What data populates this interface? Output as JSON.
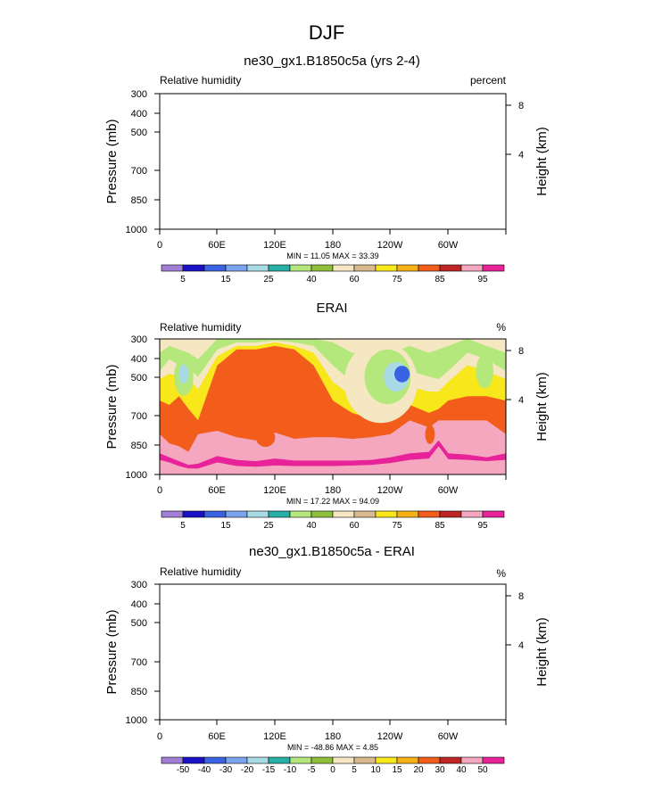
{
  "figure": {
    "title": "DJF"
  },
  "colorbar_levels_rh": [
    "5",
    "15",
    "25",
    "40",
    "60",
    "75",
    "85",
    "95"
  ],
  "colorbar_levels_diff": [
    "-50",
    "-40",
    "-30",
    "-20",
    "-15",
    "-10",
    "-5",
    "0",
    "5",
    "10",
    "15",
    "20",
    "30",
    "40",
    "50"
  ],
  "palette_rh": [
    "#a27fd6",
    "#1a10c6",
    "#3c62e4",
    "#7ba4ef",
    "#a9dbe6",
    "#26b0a6",
    "#b4e87c",
    "#8fbe3a",
    "#f4e7c2",
    "#d9b98d",
    "#f8e71a",
    "#f7b015",
    "#f25d1c",
    "#bd2526",
    "#f5a7c0",
    "#e8239a"
  ],
  "chart_data": [
    {
      "type": "heatmap",
      "title": "ne30_gx1.B1850c5a (yrs 2-4)",
      "left_label": "Relative humidity",
      "right_label": "percent",
      "xlabel": "",
      "ylabel": "Pressure (mb)",
      "ylabel_right": "Height (km)",
      "x_ticks": [
        "0",
        "60E",
        "120E",
        "180",
        "120W",
        "60W"
      ],
      "y_ticks": [
        "300",
        "400",
        "500",
        "700",
        "850",
        "1000"
      ],
      "y_ticks_right": [
        "8",
        "4"
      ],
      "min_max": "MIN = 11.05  MAX = 33.39",
      "fields_drawn": false
    },
    {
      "type": "heatmap",
      "title": "ERAI",
      "left_label": "Relative humidity",
      "right_label": "%",
      "xlabel": "",
      "ylabel": "Pressure (mb)",
      "ylabel_right": "Height (km)",
      "x_ticks": [
        "0",
        "60E",
        "120E",
        "180",
        "120W",
        "60W"
      ],
      "y_ticks": [
        "300",
        "400",
        "500",
        "700",
        "850",
        "1000"
      ],
      "y_ticks_right": [
        "8",
        "4"
      ],
      "min_max": "MIN = 17.22  MAX = 94.09",
      "xlim": [
        0,
        360
      ],
      "ylim": [
        1000,
        300
      ],
      "contour_levels": [
        5,
        15,
        25,
        40,
        60,
        75,
        85,
        95
      ],
      "columns_lon": [
        0,
        10,
        20,
        30,
        40,
        60,
        80,
        100,
        120,
        140,
        160,
        180,
        200,
        220,
        240,
        260,
        280,
        290,
        300,
        320,
        340,
        360
      ],
      "column_boundaries_pressure": [
        [
          340,
          400,
          430,
          520,
          700,
          780,
          830,
          880,
          920,
          950
        ],
        [
          320,
          360,
          410,
          540,
          760,
          810,
          860,
          900,
          940,
          975
        ],
        [
          330,
          380,
          420,
          500,
          780,
          840,
          890,
          930,
          960,
          990
        ],
        [
          340,
          390,
          430,
          560,
          820,
          880,
          920,
          950,
          980,
          1000
        ],
        [
          360,
          420,
          470,
          620,
          700,
          860,
          910,
          950,
          985,
          1000
        ],
        [
          300,
          330,
          350,
          380,
          680,
          780,
          850,
          900,
          960,
          990
        ],
        [
          300,
          310,
          320,
          330,
          720,
          820,
          880,
          930,
          965,
          990
        ],
        [
          300,
          310,
          320,
          330,
          740,
          830,
          890,
          935,
          965,
          985
        ],
        [
          300,
          305,
          310,
          320,
          690,
          800,
          870,
          925,
          960,
          985
        ],
        [
          300,
          310,
          320,
          330,
          730,
          830,
          885,
          930,
          960,
          985
        ],
        [
          300,
          320,
          340,
          380,
          720,
          830,
          885,
          930,
          960,
          985
        ],
        [
          310,
          380,
          440,
          520,
          720,
          840,
          885,
          930,
          960,
          985
        ],
        [
          340,
          440,
          500,
          580,
          730,
          840,
          885,
          925,
          955,
          980
        ],
        [
          350,
          450,
          520,
          610,
          720,
          830,
          880,
          920,
          950,
          975
        ],
        [
          340,
          440,
          510,
          600,
          700,
          810,
          860,
          905,
          940,
          965
        ],
        [
          320,
          400,
          460,
          540,
          620,
          760,
          830,
          880,
          920,
          955
        ],
        [
          340,
          420,
          480,
          580,
          660,
          760,
          820,
          870,
          910,
          940
        ],
        [
          330,
          430,
          480,
          560,
          620,
          700,
          740,
          780,
          830,
          880
        ],
        [
          320,
          400,
          440,
          520,
          620,
          780,
          830,
          875,
          915,
          945
        ],
        [
          300,
          340,
          380,
          500,
          620,
          800,
          840,
          880,
          915,
          945
        ],
        [
          320,
          360,
          400,
          500,
          620,
          830,
          860,
          890,
          920,
          950
        ],
        [
          340,
          400,
          430,
          520,
          700,
          780,
          830,
          880,
          920,
          950
        ]
      ],
      "band_values": [
        40,
        25,
        40,
        60,
        75,
        85,
        85,
        95,
        85,
        85,
        85
      ],
      "overlay_regions": [
        {
          "value": 25,
          "lon": 25,
          "pressure": 420,
          "lon_radius": 10,
          "p_radius": 70
        },
        {
          "value": 15,
          "lon": 25,
          "pressure": 410,
          "lon_radius": 5,
          "p_radius": 35
        },
        {
          "value": 25,
          "lon": 338,
          "pressure": 400,
          "lon_radius": 9,
          "p_radius": 60
        },
        {
          "value": 40,
          "lon": 230,
          "pressure": 440,
          "lon_radius": 38,
          "p_radius": 180
        },
        {
          "value": 25,
          "lon": 237,
          "pressure": 420,
          "lon_radius": 24,
          "p_radius": 100
        },
        {
          "value": 15,
          "lon": 246,
          "pressure": 420,
          "lon_radius": 13,
          "p_radius": 55
        },
        {
          "value": 5,
          "lon": 252,
          "pressure": 410,
          "lon_radius": 8,
          "p_radius": 30
        },
        {
          "value": 85,
          "lon": 8,
          "pressure": 985,
          "lon_radius": 4,
          "p_radius": 25
        },
        {
          "value": 85,
          "lon": 303,
          "pressure": 980,
          "lon_radius": 6,
          "p_radius": 30
        },
        {
          "value": 75,
          "lon": 110,
          "pressure": 720,
          "lon_radius": 10,
          "p_radius": 60
        },
        {
          "value": 75,
          "lon": 281,
          "pressure": 700,
          "lon_radius": 5,
          "p_radius": 60
        }
      ]
    },
    {
      "type": "heatmap",
      "title": "ne30_gx1.B1850c5a - ERAI",
      "left_label": "Relative humidity",
      "right_label": "%",
      "xlabel": "",
      "ylabel": "Pressure (mb)",
      "ylabel_right": "Height (km)",
      "x_ticks": [
        "0",
        "60E",
        "120E",
        "180",
        "120W",
        "60W"
      ],
      "y_ticks": [
        "300",
        "400",
        "500",
        "700",
        "850",
        "1000"
      ],
      "y_ticks_right": [
        "8",
        "4"
      ],
      "min_max": "MIN = -48.86  MAX = 4.85",
      "fields_drawn": false
    }
  ]
}
